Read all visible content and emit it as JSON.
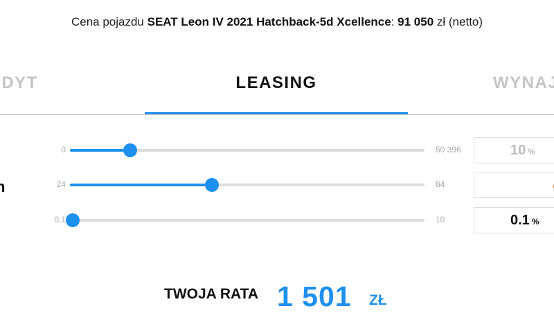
{
  "header": {
    "prefix": "Cena pojazdu ",
    "vehicle": "SEAT Leon IV 2021 Hatchback-5d Xcellence",
    "separator": ": ",
    "price": "91 050",
    "currency_suffix": " zł (netto)"
  },
  "tabs": [
    {
      "label": "REDYT",
      "active": false
    },
    {
      "label": "LEASING",
      "active": true
    },
    {
      "label": "WYNAJ",
      "active": false
    }
  ],
  "left_partial_label": "n",
  "sliders": [
    {
      "min_label": "0",
      "max_label": "50 396",
      "min": 0,
      "max": 50396,
      "value_fraction": 0.17,
      "display_value": "10",
      "unit": "%"
    },
    {
      "min_label": "24",
      "max_label": "84",
      "min": 24,
      "max": 84,
      "value": 48,
      "display_value": "",
      "unit": ""
    },
    {
      "min_label": "0.1",
      "max_label": "10",
      "min": 0.1,
      "max": 10,
      "value": 0.1,
      "display_value": "0.1",
      "unit": "%"
    }
  ],
  "result": {
    "label": "TWOJA RATA",
    "value": "1 501",
    "currency": "ZŁ"
  },
  "colors": {
    "accent": "#1e90ee",
    "track": "#dcdcdc",
    "muted_text": "#c4c4c4"
  }
}
